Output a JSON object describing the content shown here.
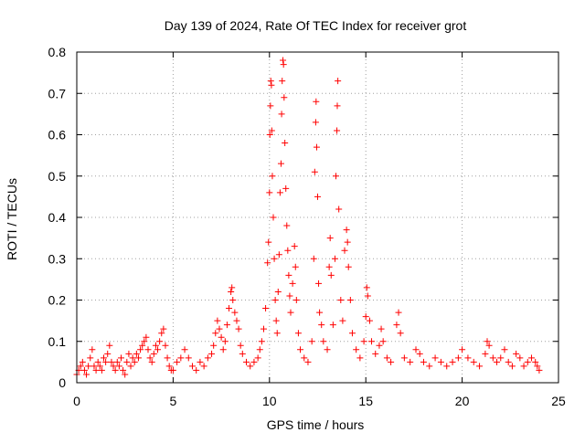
{
  "chart_data": {
    "type": "scatter",
    "title": "Day 139 of 2024, Rate Of TEC Index for receiver grot",
    "xlabel": "GPS time / hours",
    "ylabel": "ROTI / TECUs",
    "xlim": [
      0,
      25
    ],
    "ylim": [
      0,
      0.8
    ],
    "xticks": [
      0,
      5,
      10,
      15,
      20,
      25
    ],
    "xtick_labels": [
      "0",
      "5",
      "10",
      "15",
      "20",
      "25"
    ],
    "yticks": [
      0,
      0.1,
      0.2,
      0.3,
      0.4,
      0.5,
      0.6,
      0.7,
      0.8
    ],
    "ytick_labels": [
      "0",
      "0.1",
      "0.2",
      "0.3",
      "0.4",
      "0.5",
      "0.6",
      "0.7",
      "0.8"
    ],
    "grid": true,
    "marker": "plus",
    "color": "#ff0000",
    "series": [
      {
        "name": "ROTI",
        "points": [
          [
            0.0,
            0.02
          ],
          [
            0.1,
            0.03
          ],
          [
            0.2,
            0.04
          ],
          [
            0.3,
            0.05
          ],
          [
            0.4,
            0.03
          ],
          [
            0.5,
            0.02
          ],
          [
            0.6,
            0.04
          ],
          [
            0.7,
            0.06
          ],
          [
            0.8,
            0.08
          ],
          [
            0.9,
            0.04
          ],
          [
            1.0,
            0.03
          ],
          [
            1.1,
            0.05
          ],
          [
            1.2,
            0.04
          ],
          [
            1.3,
            0.03
          ],
          [
            1.4,
            0.06
          ],
          [
            1.5,
            0.05
          ],
          [
            1.6,
            0.07
          ],
          [
            1.7,
            0.09
          ],
          [
            1.8,
            0.05
          ],
          [
            1.9,
            0.04
          ],
          [
            2.0,
            0.03
          ],
          [
            2.1,
            0.05
          ],
          [
            2.2,
            0.04
          ],
          [
            2.3,
            0.06
          ],
          [
            2.4,
            0.03
          ],
          [
            2.5,
            0.02
          ],
          [
            2.6,
            0.05
          ],
          [
            2.7,
            0.07
          ],
          [
            2.8,
            0.04
          ],
          [
            2.9,
            0.06
          ],
          [
            3.0,
            0.05
          ],
          [
            3.1,
            0.07
          ],
          [
            3.2,
            0.06
          ],
          [
            3.3,
            0.08
          ],
          [
            3.4,
            0.09
          ],
          [
            3.5,
            0.1
          ],
          [
            3.6,
            0.11
          ],
          [
            3.7,
            0.08
          ],
          [
            3.8,
            0.06
          ],
          [
            3.9,
            0.05
          ],
          [
            4.0,
            0.07
          ],
          [
            4.1,
            0.09
          ],
          [
            4.2,
            0.08
          ],
          [
            4.3,
            0.1
          ],
          [
            4.4,
            0.12
          ],
          [
            4.5,
            0.13
          ],
          [
            4.6,
            0.09
          ],
          [
            4.7,
            0.06
          ],
          [
            4.8,
            0.04
          ],
          [
            4.9,
            0.03
          ],
          [
            5.0,
            0.03
          ],
          [
            5.2,
            0.05
          ],
          [
            5.4,
            0.06
          ],
          [
            5.6,
            0.08
          ],
          [
            5.8,
            0.06
          ],
          [
            6.0,
            0.04
          ],
          [
            6.2,
            0.03
          ],
          [
            6.4,
            0.05
          ],
          [
            6.6,
            0.04
          ],
          [
            6.8,
            0.06
          ],
          [
            7.0,
            0.07
          ],
          [
            7.1,
            0.09
          ],
          [
            7.2,
            0.12
          ],
          [
            7.3,
            0.15
          ],
          [
            7.4,
            0.13
          ],
          [
            7.5,
            0.11
          ],
          [
            7.6,
            0.08
          ],
          [
            7.7,
            0.1
          ],
          [
            7.8,
            0.14
          ],
          [
            7.9,
            0.18
          ],
          [
            8.0,
            0.22
          ],
          [
            8.05,
            0.23
          ],
          [
            8.1,
            0.2
          ],
          [
            8.2,
            0.17
          ],
          [
            8.3,
            0.15
          ],
          [
            8.4,
            0.13
          ],
          [
            8.5,
            0.09
          ],
          [
            8.6,
            0.07
          ],
          [
            8.8,
            0.05
          ],
          [
            9.0,
            0.04
          ],
          [
            9.2,
            0.05
          ],
          [
            9.4,
            0.06
          ],
          [
            9.5,
            0.08
          ],
          [
            9.6,
            0.1
          ],
          [
            9.7,
            0.13
          ],
          [
            9.8,
            0.18
          ],
          [
            9.9,
            0.29
          ],
          [
            9.95,
            0.34
          ],
          [
            10.0,
            0.46
          ],
          [
            10.02,
            0.6
          ],
          [
            10.05,
            0.67
          ],
          [
            10.07,
            0.73
          ],
          [
            10.1,
            0.72
          ],
          [
            10.12,
            0.61
          ],
          [
            10.15,
            0.5
          ],
          [
            10.2,
            0.4
          ],
          [
            10.25,
            0.3
          ],
          [
            10.3,
            0.2
          ],
          [
            10.35,
            0.15
          ],
          [
            10.4,
            0.12
          ],
          [
            10.45,
            0.22
          ],
          [
            10.5,
            0.31
          ],
          [
            10.55,
            0.46
          ],
          [
            10.6,
            0.53
          ],
          [
            10.63,
            0.65
          ],
          [
            10.66,
            0.73
          ],
          [
            10.7,
            0.78
          ],
          [
            10.73,
            0.77
          ],
          [
            10.76,
            0.69
          ],
          [
            10.8,
            0.58
          ],
          [
            10.85,
            0.47
          ],
          [
            10.9,
            0.38
          ],
          [
            10.95,
            0.32
          ],
          [
            11.0,
            0.26
          ],
          [
            11.05,
            0.21
          ],
          [
            11.1,
            0.17
          ],
          [
            11.2,
            0.24
          ],
          [
            11.3,
            0.33
          ],
          [
            11.35,
            0.28
          ],
          [
            11.4,
            0.2
          ],
          [
            11.5,
            0.12
          ],
          [
            11.6,
            0.08
          ],
          [
            11.8,
            0.06
          ],
          [
            12.0,
            0.05
          ],
          [
            12.2,
            0.1
          ],
          [
            12.3,
            0.3
          ],
          [
            12.35,
            0.51
          ],
          [
            12.4,
            0.63
          ],
          [
            12.42,
            0.68
          ],
          [
            12.45,
            0.57
          ],
          [
            12.5,
            0.45
          ],
          [
            12.55,
            0.24
          ],
          [
            12.6,
            0.17
          ],
          [
            12.7,
            0.14
          ],
          [
            12.8,
            0.1
          ],
          [
            13.0,
            0.08
          ],
          [
            13.1,
            0.28
          ],
          [
            13.15,
            0.35
          ],
          [
            13.2,
            0.26
          ],
          [
            13.3,
            0.14
          ],
          [
            13.4,
            0.3
          ],
          [
            13.45,
            0.5
          ],
          [
            13.5,
            0.61
          ],
          [
            13.52,
            0.67
          ],
          [
            13.55,
            0.73
          ],
          [
            13.6,
            0.42
          ],
          [
            13.7,
            0.2
          ],
          [
            13.8,
            0.15
          ],
          [
            13.9,
            0.32
          ],
          [
            14.0,
            0.37
          ],
          [
            14.05,
            0.34
          ],
          [
            14.1,
            0.28
          ],
          [
            14.2,
            0.2
          ],
          [
            14.3,
            0.12
          ],
          [
            14.5,
            0.08
          ],
          [
            14.7,
            0.06
          ],
          [
            14.9,
            0.1
          ],
          [
            15.0,
            0.16
          ],
          [
            15.05,
            0.23
          ],
          [
            15.1,
            0.21
          ],
          [
            15.2,
            0.15
          ],
          [
            15.3,
            0.1
          ],
          [
            15.5,
            0.07
          ],
          [
            15.7,
            0.09
          ],
          [
            15.8,
            0.13
          ],
          [
            15.9,
            0.1
          ],
          [
            16.1,
            0.06
          ],
          [
            16.3,
            0.05
          ],
          [
            16.6,
            0.14
          ],
          [
            16.7,
            0.17
          ],
          [
            16.8,
            0.12
          ],
          [
            17.0,
            0.06
          ],
          [
            17.3,
            0.05
          ],
          [
            17.6,
            0.08
          ],
          [
            17.8,
            0.07
          ],
          [
            18.0,
            0.05
          ],
          [
            18.3,
            0.04
          ],
          [
            18.6,
            0.06
          ],
          [
            18.9,
            0.05
          ],
          [
            19.2,
            0.04
          ],
          [
            19.5,
            0.05
          ],
          [
            19.8,
            0.06
          ],
          [
            20.0,
            0.08
          ],
          [
            20.3,
            0.06
          ],
          [
            20.6,
            0.05
          ],
          [
            20.9,
            0.04
          ],
          [
            21.2,
            0.07
          ],
          [
            21.3,
            0.1
          ],
          [
            21.4,
            0.09
          ],
          [
            21.6,
            0.06
          ],
          [
            21.8,
            0.05
          ],
          [
            22.0,
            0.06
          ],
          [
            22.2,
            0.08
          ],
          [
            22.4,
            0.05
          ],
          [
            22.6,
            0.04
          ],
          [
            22.8,
            0.07
          ],
          [
            23.0,
            0.06
          ],
          [
            23.2,
            0.04
          ],
          [
            23.4,
            0.05
          ],
          [
            23.6,
            0.06
          ],
          [
            23.8,
            0.05
          ],
          [
            23.9,
            0.04
          ],
          [
            24.0,
            0.03
          ]
        ]
      }
    ]
  }
}
